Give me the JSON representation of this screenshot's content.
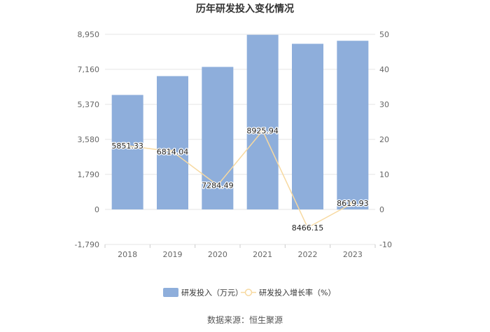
{
  "chart_data": {
    "type": "bar",
    "title": "历年研发投入变化情况",
    "categories": [
      "2018",
      "2019",
      "2020",
      "2021",
      "2022",
      "2023"
    ],
    "series": [
      {
        "name": "研发投入（万元）",
        "type": "bar",
        "axis": "left",
        "values": [
          5851.33,
          6814.04,
          7284.49,
          8925.94,
          8466.15,
          8619.93
        ],
        "labels": [
          "5851.33",
          "6814.04",
          "7284.49",
          "8925.94",
          "8466.15",
          "8619.93"
        ],
        "color": "#8eaedb"
      },
      {
        "name": "研发投入增长率（%）",
        "type": "line",
        "axis": "right",
        "values": [
          18.2,
          16.5,
          6.9,
          22.5,
          -5.2,
          1.8
        ],
        "color": "#f7d9a0"
      }
    ],
    "y_left": {
      "range": [
        -1790,
        8950
      ],
      "ticks": [
        8950,
        7160,
        5370,
        3580,
        1790,
        0,
        -1790
      ],
      "tick_labels": [
        "8,950",
        "7,160",
        "5,370",
        "3,580",
        "1,790",
        "0",
        "-1,790"
      ]
    },
    "y_right": {
      "range": [
        -10,
        50
      ],
      "ticks": [
        50,
        40,
        30,
        20,
        10,
        0,
        -10
      ],
      "tick_labels": [
        "50",
        "40",
        "30",
        "20",
        "10",
        "0",
        "-10"
      ]
    },
    "grid": true,
    "legend_position": "bottom"
  },
  "source": "数据来源：恒生聚源"
}
